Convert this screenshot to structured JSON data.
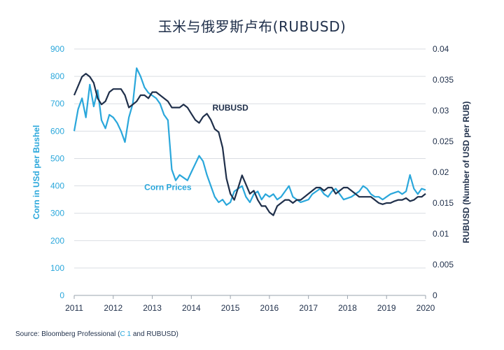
{
  "chart_data": {
    "type": "line",
    "title": "玉米与俄罗斯卢布(RUBUSD)",
    "xlabel": "",
    "x_ticks": [
      "2011",
      "2012",
      "2013",
      "2014",
      "2015",
      "2016",
      "2017",
      "2018",
      "2019",
      "2020"
    ],
    "xlim": [
      2011,
      2020
    ],
    "left_axis": {
      "label": "Corn in USd per Bushel",
      "ylim": [
        0,
        900
      ],
      "ticks": [
        0,
        100,
        200,
        300,
        400,
        500,
        600,
        700,
        800,
        900
      ],
      "color": "#2aa7db"
    },
    "right_axis": {
      "label": "RUBUSD (Number of USD per RUB)",
      "ylim": [
        0,
        0.04
      ],
      "ticks": [
        "0",
        "0.005",
        "0.01",
        "0.015",
        "0.02",
        "0.025",
        "0.03",
        "0.035",
        "0.04"
      ],
      "color": "#1f2f4a"
    },
    "grid": true,
    "series": [
      {
        "name": "Corn Prices",
        "axis": "left",
        "color": "#2aa7db",
        "x": [
          2011.0,
          2011.1,
          2011.2,
          2011.3,
          2011.4,
          2011.5,
          2011.6,
          2011.7,
          2011.8,
          2011.9,
          2012.0,
          2012.1,
          2012.2,
          2012.3,
          2012.4,
          2012.5,
          2012.6,
          2012.7,
          2012.8,
          2012.9,
          2013.0,
          2013.1,
          2013.2,
          2013.3,
          2013.4,
          2013.5,
          2013.6,
          2013.7,
          2013.8,
          2013.9,
          2014.0,
          2014.1,
          2014.2,
          2014.3,
          2014.4,
          2014.5,
          2014.6,
          2014.7,
          2014.8,
          2014.9,
          2015.0,
          2015.1,
          2015.2,
          2015.3,
          2015.4,
          2015.5,
          2015.6,
          2015.7,
          2015.8,
          2015.9,
          2016.0,
          2016.1,
          2016.2,
          2016.3,
          2016.4,
          2016.5,
          2016.6,
          2016.7,
          2016.8,
          2016.9,
          2017.0,
          2017.1,
          2017.2,
          2017.3,
          2017.4,
          2017.5,
          2017.6,
          2017.7,
          2017.8,
          2017.9,
          2018.0,
          2018.1,
          2018.2,
          2018.3,
          2018.4,
          2018.5,
          2018.6,
          2018.7,
          2018.8,
          2018.9,
          2019.0,
          2019.1,
          2019.2,
          2019.3,
          2019.4,
          2019.5,
          2019.6,
          2019.7,
          2019.8,
          2019.9,
          2020.0
        ],
        "values": [
          600,
          680,
          720,
          650,
          770,
          690,
          750,
          640,
          610,
          660,
          650,
          630,
          600,
          560,
          650,
          700,
          830,
          800,
          760,
          740,
          730,
          720,
          700,
          660,
          640,
          460,
          420,
          440,
          430,
          420,
          450,
          480,
          510,
          490,
          440,
          400,
          360,
          340,
          350,
          330,
          340,
          380,
          390,
          400,
          360,
          340,
          370,
          380,
          350,
          370,
          360,
          370,
          350,
          360,
          380,
          400,
          360,
          350,
          340,
          345,
          350,
          370,
          380,
          390,
          370,
          360,
          380,
          390,
          370,
          350,
          355,
          360,
          370,
          380,
          400,
          390,
          370,
          360,
          360,
          350,
          360,
          370,
          375,
          380,
          370,
          380,
          440,
          390,
          370,
          390,
          385
        ]
      },
      {
        "name": "RUBUSD",
        "axis": "right",
        "color": "#1f2f4a",
        "x": [
          2011.0,
          2011.1,
          2011.2,
          2011.3,
          2011.4,
          2011.5,
          2011.6,
          2011.7,
          2011.8,
          2011.9,
          2012.0,
          2012.1,
          2012.2,
          2012.3,
          2012.4,
          2012.5,
          2012.6,
          2012.7,
          2012.8,
          2012.9,
          2013.0,
          2013.1,
          2013.2,
          2013.3,
          2013.4,
          2013.5,
          2013.6,
          2013.7,
          2013.8,
          2013.9,
          2014.0,
          2014.1,
          2014.2,
          2014.3,
          2014.4,
          2014.5,
          2014.6,
          2014.7,
          2014.8,
          2014.9,
          2015.0,
          2015.1,
          2015.2,
          2015.3,
          2015.4,
          2015.5,
          2015.6,
          2015.7,
          2015.8,
          2015.9,
          2016.0,
          2016.1,
          2016.2,
          2016.3,
          2016.4,
          2016.5,
          2016.6,
          2016.7,
          2016.8,
          2016.9,
          2017.0,
          2017.1,
          2017.2,
          2017.3,
          2017.4,
          2017.5,
          2017.6,
          2017.7,
          2017.8,
          2017.9,
          2018.0,
          2018.1,
          2018.2,
          2018.3,
          2018.4,
          2018.5,
          2018.6,
          2018.7,
          2018.8,
          2018.9,
          2019.0,
          2019.1,
          2019.2,
          2019.3,
          2019.4,
          2019.5,
          2019.6,
          2019.7,
          2019.8,
          2019.9,
          2020.0
        ],
        "values": [
          0.0325,
          0.034,
          0.0355,
          0.036,
          0.0355,
          0.0345,
          0.032,
          0.031,
          0.0315,
          0.033,
          0.0335,
          0.0335,
          0.0335,
          0.0325,
          0.0305,
          0.031,
          0.0315,
          0.0325,
          0.0325,
          0.032,
          0.033,
          0.033,
          0.0325,
          0.032,
          0.0315,
          0.0305,
          0.0305,
          0.0305,
          0.031,
          0.0305,
          0.0295,
          0.0285,
          0.028,
          0.029,
          0.0295,
          0.0285,
          0.027,
          0.0265,
          0.024,
          0.019,
          0.0165,
          0.0155,
          0.0175,
          0.0195,
          0.018,
          0.0165,
          0.017,
          0.0155,
          0.0145,
          0.0145,
          0.0135,
          0.013,
          0.0145,
          0.015,
          0.0155,
          0.0155,
          0.015,
          0.0155,
          0.0155,
          0.016,
          0.0165,
          0.017,
          0.0175,
          0.0175,
          0.017,
          0.0175,
          0.0175,
          0.0165,
          0.017,
          0.0175,
          0.0175,
          0.017,
          0.0165,
          0.016,
          0.016,
          0.016,
          0.016,
          0.0155,
          0.015,
          0.0148,
          0.015,
          0.015,
          0.0153,
          0.0155,
          0.0155,
          0.0158,
          0.0153,
          0.0155,
          0.016,
          0.016,
          0.0165
        ]
      }
    ],
    "annotations": [
      {
        "text": "RUBUSD",
        "x": 2015.0,
        "y_left": 675
      },
      {
        "text": "Corn Prices",
        "x": 2013.4,
        "y_left": 385
      }
    ],
    "source": {
      "prefix": "Source: Bloomberg Professional (",
      "accent": "C 1",
      "suffix": " and RUBUSD)"
    }
  }
}
